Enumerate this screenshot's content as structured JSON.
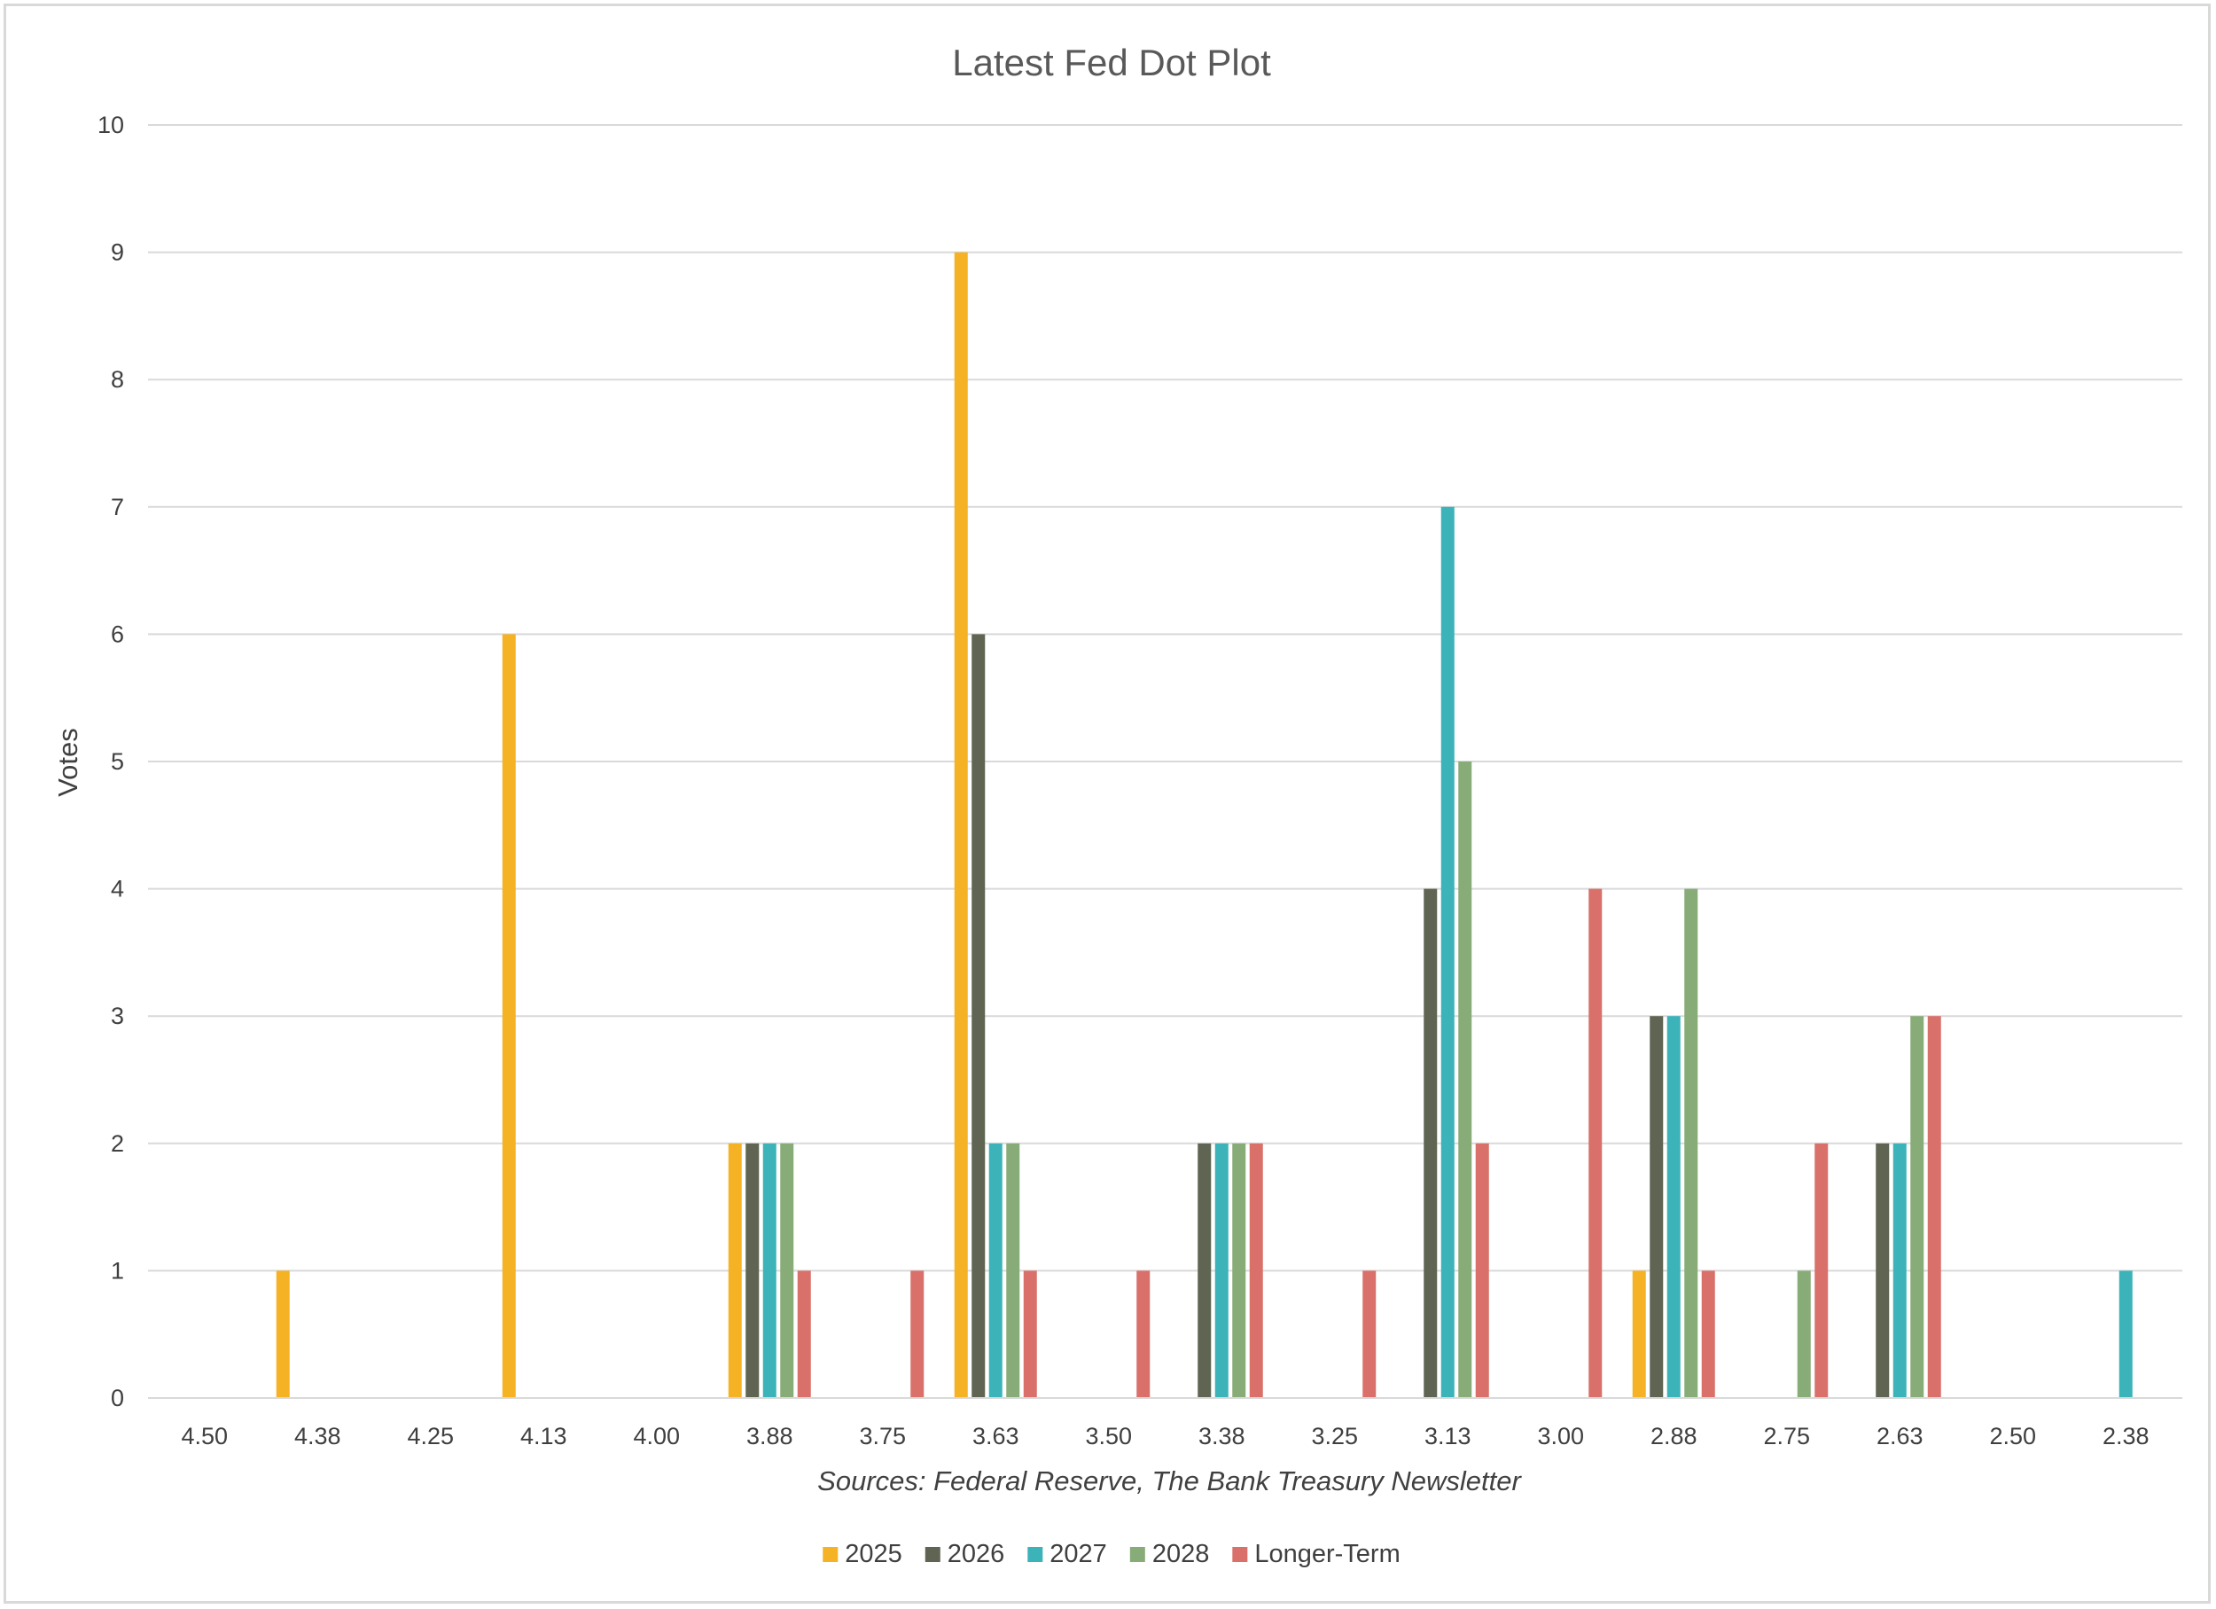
{
  "chart_data": {
    "type": "bar",
    "title": "Latest Fed Dot Plot",
    "ylabel": "Votes",
    "xlabel": "",
    "source_note": "Sources: Federal Reserve, The Bank Treasury Newsletter",
    "ylim": [
      0,
      10
    ],
    "yticks": [
      "0",
      "1",
      "2",
      "3",
      "4",
      "5",
      "6",
      "7",
      "8",
      "9",
      "10"
    ],
    "grid": true,
    "legend_position": "bottom",
    "categories": [
      "4.50",
      "4.38",
      "4.25",
      "4.13",
      "4.00",
      "3.88",
      "3.75",
      "3.63",
      "3.50",
      "3.38",
      "3.25",
      "3.13",
      "3.00",
      "2.88",
      "2.75",
      "2.63",
      "2.50",
      "2.38"
    ],
    "series": [
      {
        "name": "2025",
        "color": "#F4B224",
        "values": [
          0,
          1,
          0,
          6,
          0,
          2,
          0,
          9,
          0,
          0,
          0,
          0,
          0,
          1,
          0,
          0,
          0,
          0
        ]
      },
      {
        "name": "2026",
        "color": "#5F6552",
        "values": [
          0,
          0,
          0,
          0,
          0,
          2,
          0,
          6,
          0,
          2,
          0,
          4,
          0,
          3,
          0,
          2,
          0,
          0
        ]
      },
      {
        "name": "2027",
        "color": "#3BB3B8",
        "values": [
          0,
          0,
          0,
          0,
          0,
          2,
          0,
          2,
          0,
          2,
          0,
          7,
          0,
          3,
          0,
          2,
          0,
          1
        ]
      },
      {
        "name": "2028",
        "color": "#88AC78",
        "values": [
          0,
          0,
          0,
          0,
          0,
          2,
          0,
          2,
          0,
          2,
          0,
          5,
          0,
          4,
          1,
          3,
          0,
          0
        ]
      },
      {
        "name": "Longer-Term",
        "color": "#D9706A",
        "values": [
          0,
          0,
          0,
          0,
          0,
          1,
          1,
          1,
          1,
          2,
          1,
          2,
          4,
          1,
          2,
          3,
          0,
          0
        ]
      }
    ]
  }
}
